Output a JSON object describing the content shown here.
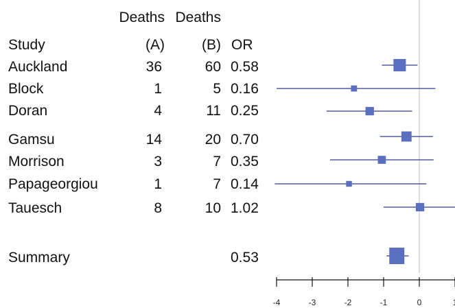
{
  "headers": {
    "study": "Study",
    "deaths_a_line1": "Deaths",
    "deaths_a_line2": "(A)",
    "deaths_b_line1": "Deaths",
    "deaths_b_line2": "(B)",
    "or": "OR"
  },
  "rows": [
    {
      "study": "Auckland",
      "deaths_a": "36",
      "deaths_b": "60",
      "or": "0.58"
    },
    {
      "study": "Block",
      "deaths_a": "1",
      "deaths_b": "5",
      "or": "0.16"
    },
    {
      "study": "Doran",
      "deaths_a": "4",
      "deaths_b": "11",
      "or": "0.25"
    },
    {
      "study": "Gamsu",
      "deaths_a": "14",
      "deaths_b": "20",
      "or": "0.70"
    },
    {
      "study": "Morrison",
      "deaths_a": "3",
      "deaths_b": "7",
      "or": "0.35"
    },
    {
      "study": "Papageorgiou",
      "deaths_a": "1",
      "deaths_b": "7",
      "or": "0.14"
    },
    {
      "study": "Tauesch",
      "deaths_a": "8",
      "deaths_b": "10",
      "or": "1.02"
    }
  ],
  "summary": {
    "label": "Summary",
    "or": "0.53"
  },
  "chart_data": {
    "type": "forest",
    "x_scale": "log odds ratio",
    "xlim": [
      -4,
      1
    ],
    "xticks": [
      "-4",
      "-3",
      "-2",
      "-1",
      "0",
      "1"
    ],
    "reference_line": 0,
    "color": "#5a6fbf",
    "line_color": "#2d3a8c",
    "ref_line_color": "#c9c9c9",
    "studies": [
      {
        "label": "Auckland",
        "estimate": -0.55,
        "lower": -1.05,
        "upper": -0.05,
        "weight": 1.0
      },
      {
        "label": "Block",
        "estimate": -1.83,
        "lower": -4.0,
        "upper": 0.45,
        "weight": 0.12
      },
      {
        "label": "Doran",
        "estimate": -1.39,
        "lower": -2.6,
        "upper": -0.2,
        "weight": 0.35
      },
      {
        "label": "Gamsu",
        "estimate": -0.36,
        "lower": -1.1,
        "upper": 0.38,
        "weight": 0.6
      },
      {
        "label": "Morrison",
        "estimate": -1.05,
        "lower": -2.5,
        "upper": 0.4,
        "weight": 0.3
      },
      {
        "label": "Papageorgiou",
        "estimate": -1.97,
        "lower": -4.1,
        "upper": 0.2,
        "weight": 0.1
      },
      {
        "label": "Tauesch",
        "estimate": 0.02,
        "lower": -1.0,
        "upper": 1.05,
        "weight": 0.35
      }
    ],
    "summary": {
      "estimate": -0.63,
      "lower": -0.92,
      "upper": -0.3
    }
  }
}
